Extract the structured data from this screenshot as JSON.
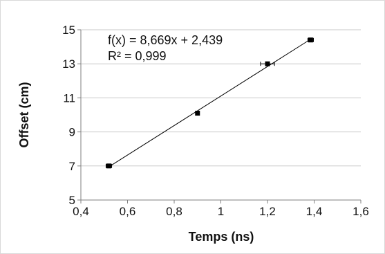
{
  "chart_data": {
    "type": "scatter",
    "xlabel": "Temps (ns)",
    "ylabel": "Offset (cm)",
    "xlim": [
      0.4,
      1.6
    ],
    "ylim": [
      5,
      15
    ],
    "x_ticks": [
      "0,4",
      "0,6",
      "0,8",
      "1",
      "1,2",
      "1,4",
      "1,6"
    ],
    "y_ticks": [
      "5",
      "7",
      "9",
      "11",
      "13",
      "15"
    ],
    "grid": "horizontal",
    "series": [
      {
        "x": [
          0.52,
          0.9,
          1.2,
          1.385
        ],
        "y": [
          7.0,
          10.1,
          13.0,
          14.4
        ],
        "x_error": [
          0.012,
          0.0,
          0.03,
          0.012
        ],
        "y_error": [
          0.0,
          0.12,
          0.0,
          0.0
        ],
        "color": "#000000"
      }
    ],
    "trendline": {
      "slope": 8.669,
      "intercept": 2.439,
      "x_range": [
        0.52,
        1.385
      ],
      "color": "#000000"
    },
    "annotations": [
      "f(x) = 8,669x + 2,439",
      "R² = 0,999"
    ]
  }
}
